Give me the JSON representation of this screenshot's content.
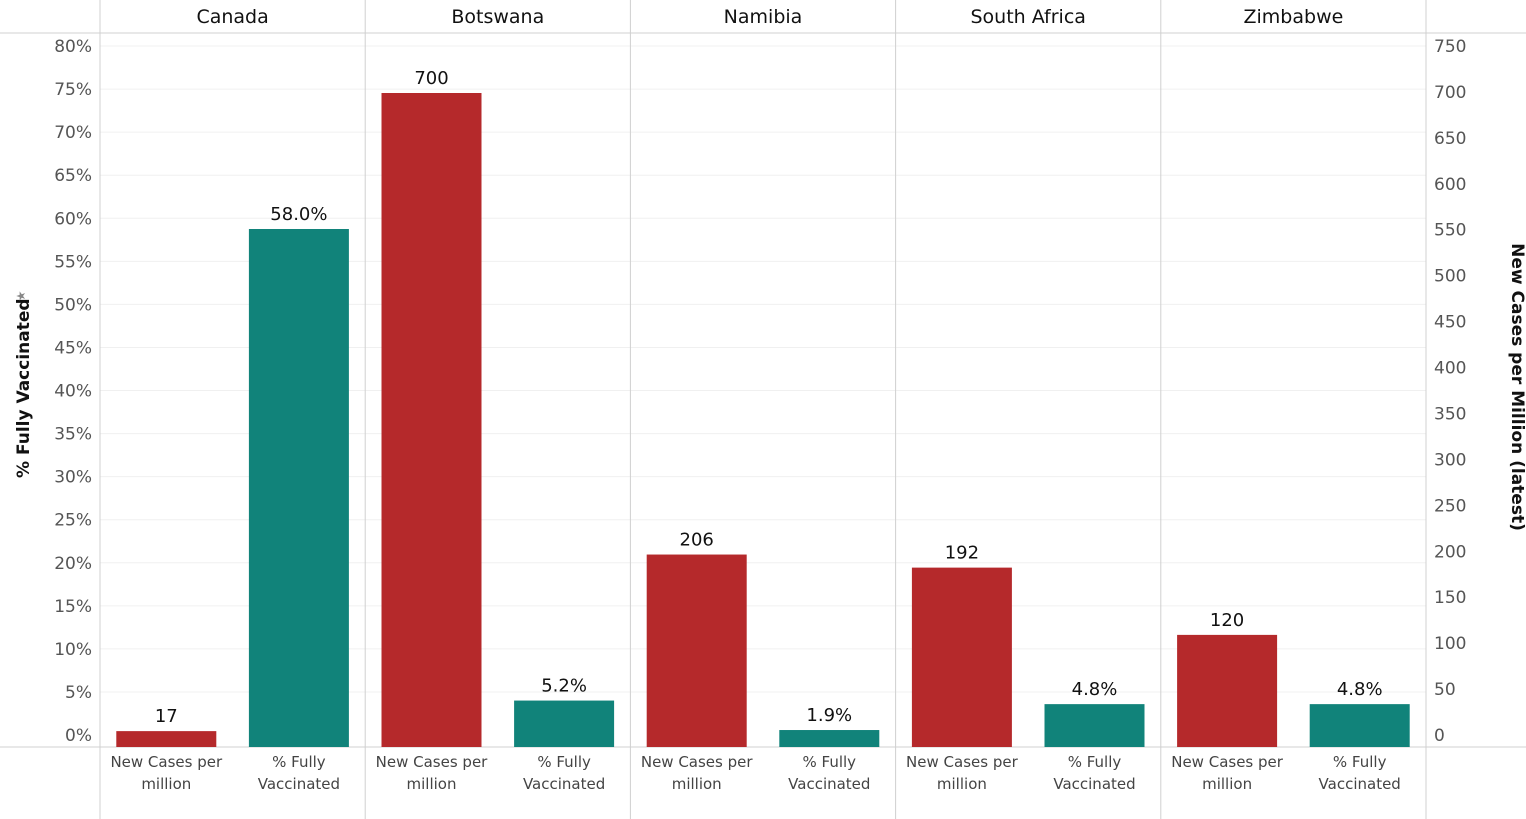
{
  "chart_data": {
    "type": "bar",
    "left_axis": {
      "title": "% Fully Vaccinated",
      "range": [
        0,
        80
      ],
      "ticks": [
        "0%",
        "5%",
        "10%",
        "15%",
        "20%",
        "25%",
        "30%",
        "35%",
        "40%",
        "45%",
        "50%",
        "55%",
        "60%",
        "65%",
        "70%",
        "75%",
        "80%"
      ]
    },
    "right_axis": {
      "title": "New Cases per Million (latest)",
      "range": [
        0,
        750
      ],
      "ticks": [
        "0",
        "50",
        "100",
        "150",
        "200",
        "250",
        "300",
        "350",
        "400",
        "450",
        "500",
        "550",
        "600",
        "650",
        "700",
        "750"
      ]
    },
    "measure_labels": [
      "New Cases per million",
      "% Fully Vaccinated"
    ],
    "measure_label_lines": [
      [
        "New Cases per",
        "million"
      ],
      [
        "% Fully",
        "Vaccinated"
      ]
    ],
    "colors": {
      "cases": "#b5292b",
      "vaccinated": "#11837a"
    },
    "countries": [
      {
        "name": "Canada",
        "new_cases_per_million": 17,
        "cases_label": "17",
        "pct_fully_vaccinated": 58.0,
        "vacc_label": "58.0%"
      },
      {
        "name": "Botswana",
        "new_cases_per_million": 700,
        "cases_label": "700",
        "pct_fully_vaccinated": 5.2,
        "vacc_label": "5.2%"
      },
      {
        "name": "Namibia",
        "new_cases_per_million": 206,
        "cases_label": "206",
        "pct_fully_vaccinated": 1.9,
        "vacc_label": "1.9%"
      },
      {
        "name": "South Africa",
        "new_cases_per_million": 192,
        "cases_label": "192",
        "pct_fully_vaccinated": 4.8,
        "vacc_label": "4.8%"
      },
      {
        "name": "Zimbabwe",
        "new_cases_per_million": 120,
        "cases_label": "120",
        "pct_fully_vaccinated": 4.8,
        "vacc_label": "4.8%"
      }
    ]
  }
}
